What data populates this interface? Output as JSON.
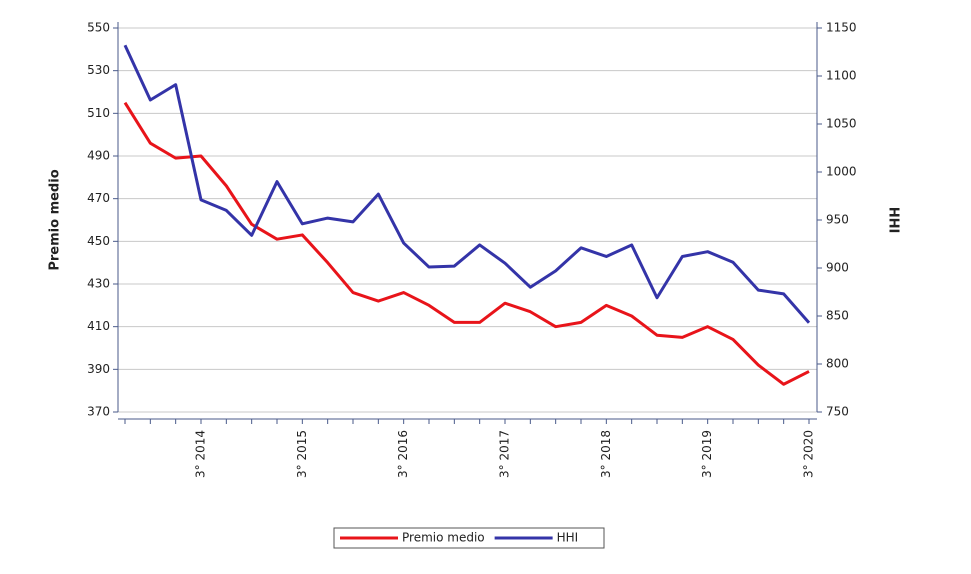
{
  "chart_data": {
    "type": "line",
    "categories": [
      null,
      null,
      null,
      "3° 2014",
      null,
      null,
      null,
      "3° 2015",
      null,
      null,
      null,
      "3° 2016",
      null,
      null,
      null,
      "3° 2017",
      null,
      null,
      null,
      "3° 2018",
      null,
      null,
      null,
      "3° 2019",
      null,
      null,
      null,
      "3° 2020"
    ],
    "series": [
      {
        "name": "Premio medio",
        "color": "#e8141a",
        "values": [
          515,
          496,
          489,
          490,
          476,
          458,
          451,
          453,
          440,
          426,
          422,
          426,
          420,
          412,
          412,
          421,
          417,
          410,
          412,
          420,
          415,
          406,
          405,
          410,
          404,
          392,
          383,
          389
        ]
      },
      {
        "name": "HHI",
        "color": "#3434a8",
        "axis": "y2",
        "values": [
          1132,
          1075,
          1091,
          971,
          960,
          934,
          990,
          946,
          952,
          948,
          977,
          926,
          901,
          902,
          924,
          905,
          880,
          897,
          921,
          912,
          924,
          869,
          912,
          917,
          906,
          877,
          873,
          843
        ]
      }
    ],
    "ylabel": "Premio medio",
    "y2label": "HHI",
    "ylim": [
      370,
      550
    ],
    "yticks": [
      370,
      390,
      410,
      430,
      450,
      470,
      490,
      510,
      530,
      550
    ],
    "y2lim": [
      750,
      1150
    ],
    "y2ticks": [
      750,
      800,
      850,
      900,
      950,
      1000,
      1050,
      1100,
      1150
    ],
    "grid": true,
    "legend": "bottom"
  }
}
